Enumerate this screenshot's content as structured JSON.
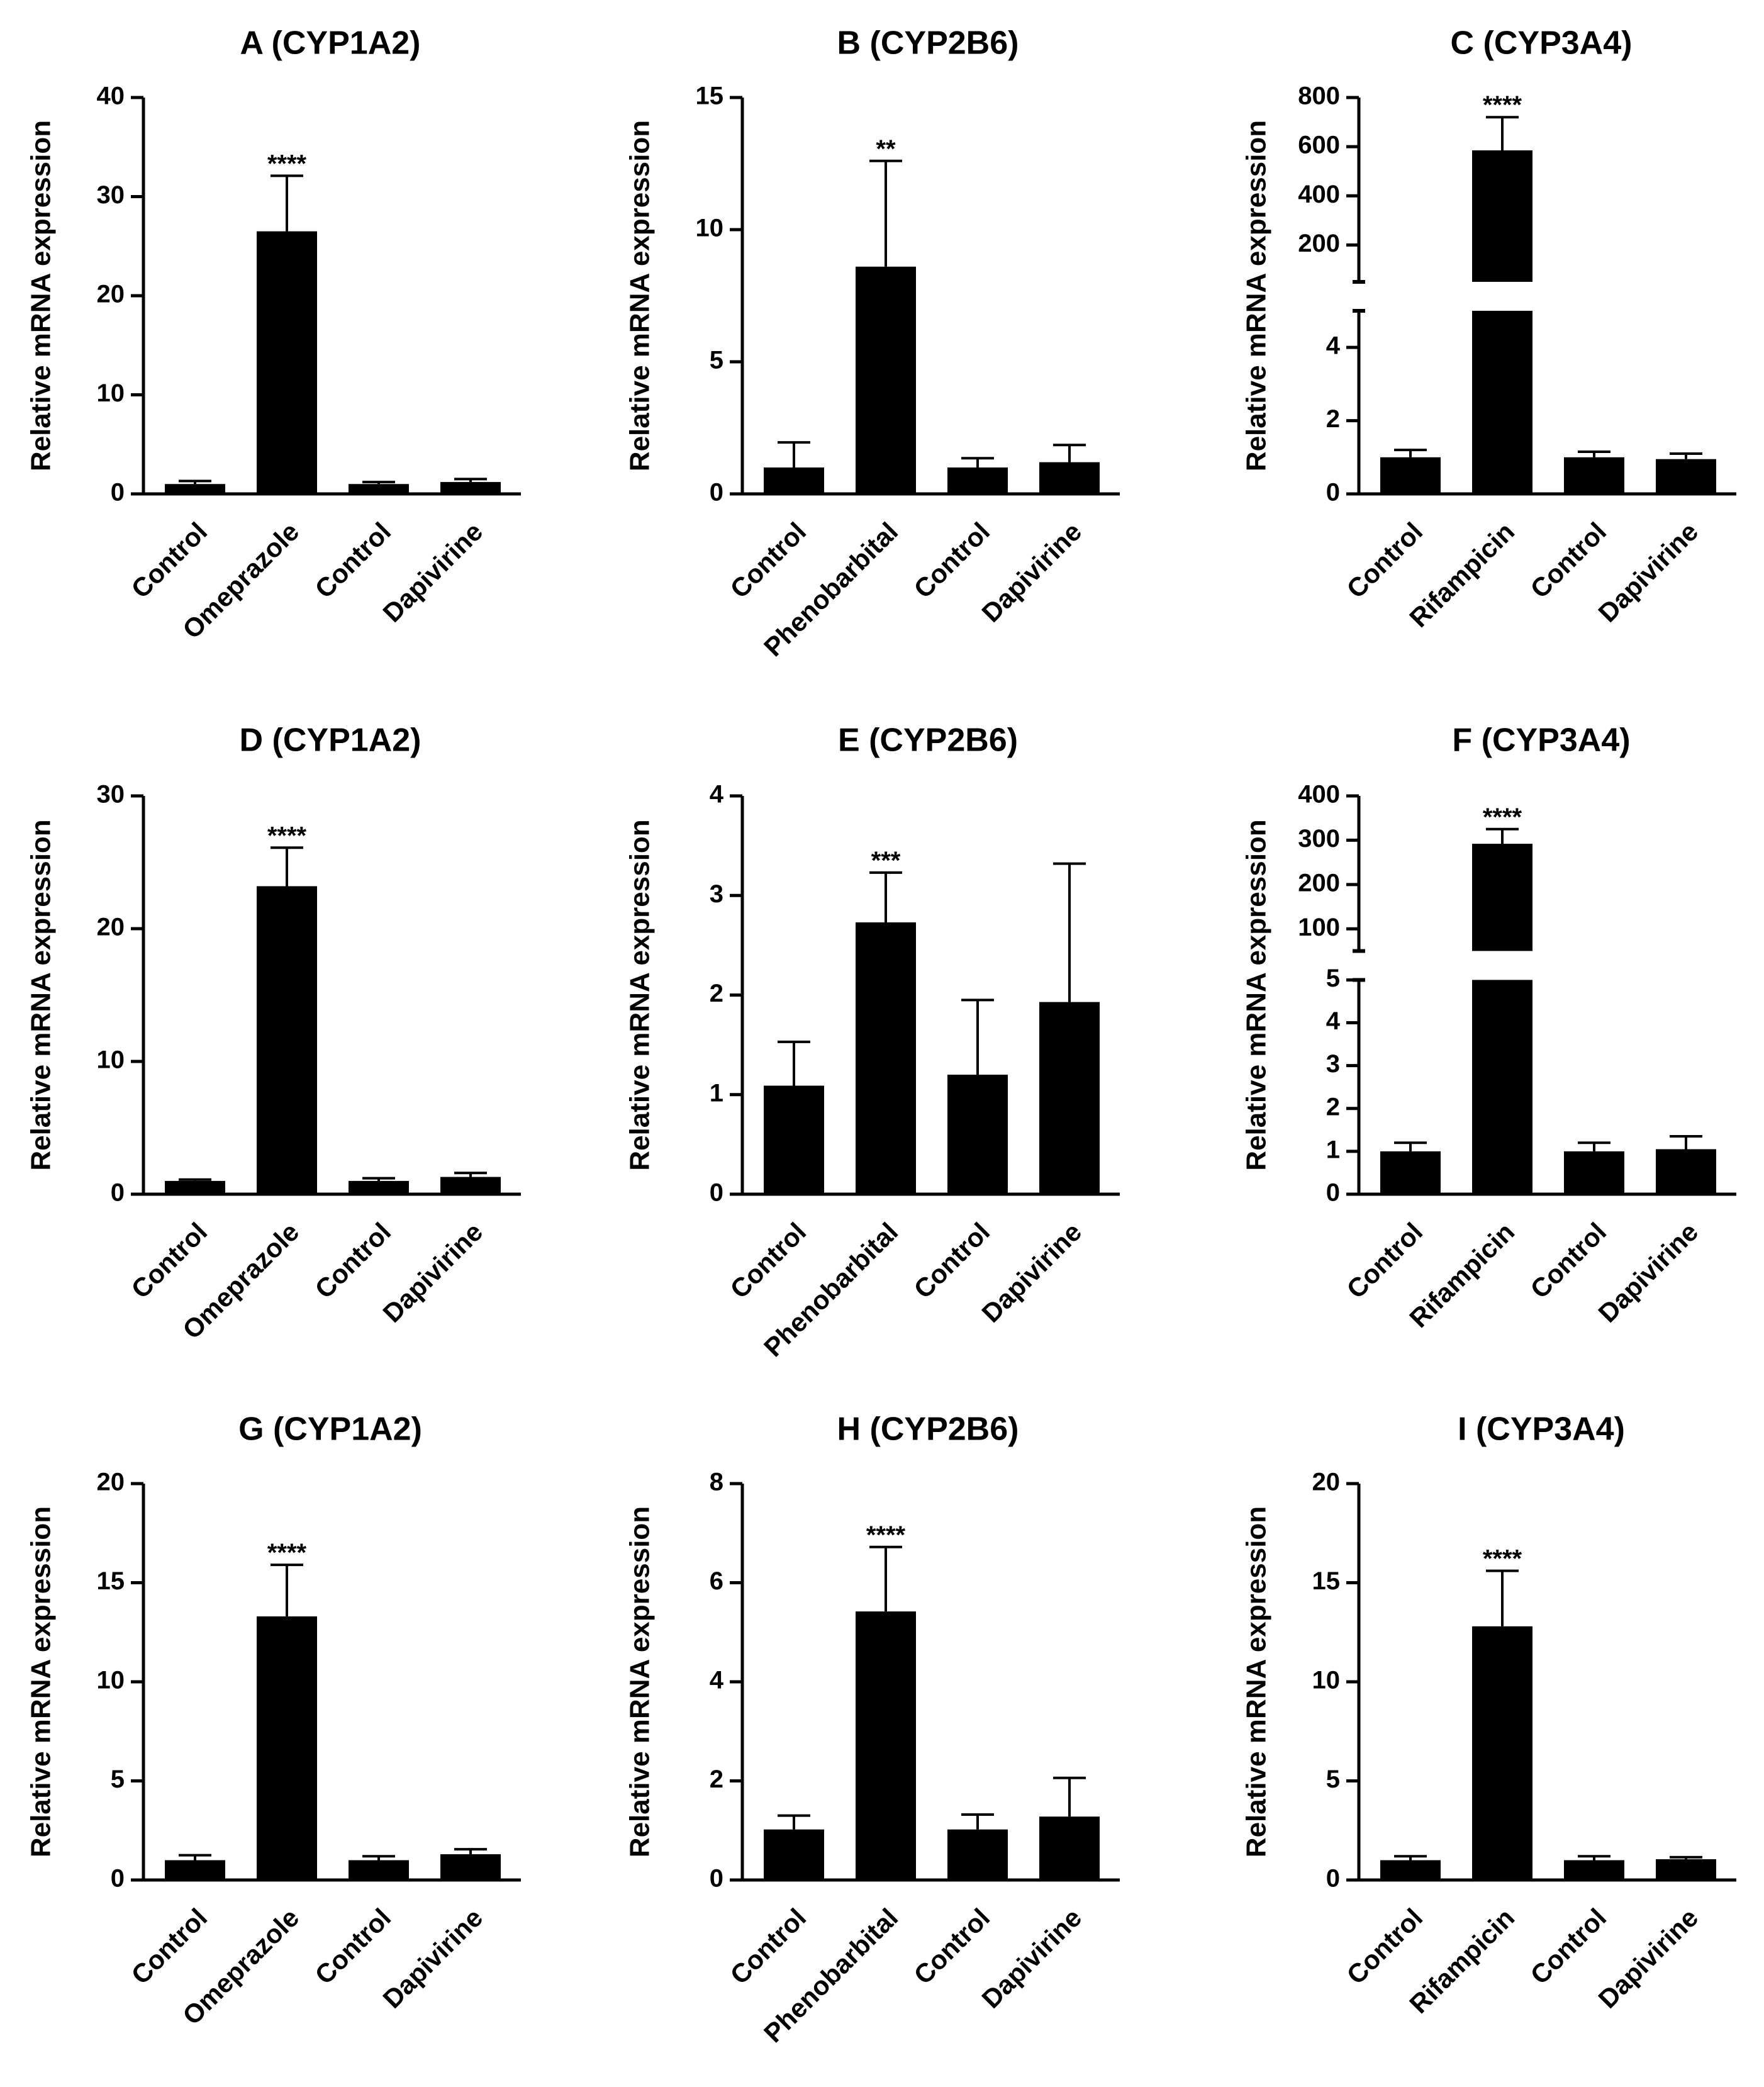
{
  "figure": {
    "background": "#ffffff",
    "bar_color": "#000000"
  },
  "chart_data": [
    {
      "panel": "A",
      "type": "bar",
      "title": "A (CYP1A2)",
      "xlabel": "",
      "ylabel": "Relative mRNA expression",
      "categories": [
        "Control",
        "Omeprazole",
        "Control",
        "Dapivirine"
      ],
      "values": [
        1.0,
        26.5,
        1.0,
        1.2
      ],
      "errors": [
        0.3,
        5.6,
        0.2,
        0.3
      ],
      "significance": [
        "",
        "****",
        "",
        ""
      ],
      "ylim": [
        0,
        40
      ],
      "yticks": [
        0,
        10,
        20,
        30,
        40
      ],
      "ytick_labels": [
        "0",
        "10",
        "20",
        "30",
        "40"
      ]
    },
    {
      "panel": "B",
      "type": "bar",
      "title": "B (CYP2B6)",
      "xlabel": "",
      "ylabel": "Relative mRNA expression",
      "categories": [
        "Control",
        "Phenobarbital",
        "Control",
        "Dapivirine"
      ],
      "values": [
        1.0,
        8.6,
        1.0,
        1.2
      ],
      "errors": [
        0.95,
        4.0,
        0.35,
        0.65
      ],
      "significance": [
        "",
        "**",
        "",
        ""
      ],
      "ylim": [
        0,
        15
      ],
      "yticks": [
        0,
        5,
        10,
        15
      ],
      "ytick_labels": [
        "0",
        "5",
        "10",
        "15"
      ]
    },
    {
      "panel": "C",
      "type": "bar",
      "title": "C (CYP3A4)",
      "xlabel": "",
      "ylabel": "Relative mRNA expression",
      "categories": [
        "Control",
        "Rifampicin",
        "Control",
        "Dapivirine"
      ],
      "values": [
        1.0,
        585,
        1.0,
        0.95
      ],
      "errors": [
        0.2,
        135,
        0.15,
        0.15
      ],
      "significance": [
        "",
        "****",
        "",
        ""
      ],
      "ylim": [
        0,
        800
      ],
      "broken_axis": {
        "lower": [
          0,
          5
        ],
        "upper": [
          50,
          800
        ],
        "lower_ticks": [
          0,
          2,
          4
        ],
        "upper_ticks": [
          200,
          400,
          600,
          800
        ]
      },
      "ytick_labels": [
        "0",
        "2",
        "4",
        "200",
        "400",
        "600",
        "800"
      ]
    },
    {
      "panel": "D",
      "type": "bar",
      "title": "D (CYP1A2)",
      "xlabel": "",
      "ylabel": "Relative mRNA expression",
      "categories": [
        "Control",
        "Omeprazole",
        "Control",
        "Dapivirine"
      ],
      "values": [
        1.0,
        23.2,
        1.0,
        1.3
      ],
      "errors": [
        0.1,
        2.9,
        0.2,
        0.3
      ],
      "significance": [
        "",
        "****",
        "",
        ""
      ],
      "ylim": [
        0,
        30
      ],
      "yticks": [
        0,
        10,
        20,
        30
      ],
      "ytick_labels": [
        "0",
        "10",
        "20",
        "30"
      ]
    },
    {
      "panel": "E",
      "type": "bar",
      "title": "E (CYP2B6)",
      "xlabel": "",
      "ylabel": "Relative mRNA expression",
      "categories": [
        "Control",
        "Phenobarbital",
        "Control",
        "Dapivirine"
      ],
      "values": [
        1.09,
        2.73,
        1.2,
        1.93
      ],
      "errors": [
        0.44,
        0.5,
        0.75,
        1.39
      ],
      "significance": [
        "",
        "***",
        "",
        ""
      ],
      "ylim": [
        0,
        4
      ],
      "yticks": [
        0,
        1,
        2,
        3,
        4
      ],
      "ytick_labels": [
        "0",
        "1",
        "2",
        "3",
        "4"
      ]
    },
    {
      "panel": "F",
      "type": "bar",
      "title": "F (CYP3A4)",
      "xlabel": "",
      "ylabel": "Relative mRNA expression",
      "categories": [
        "Control",
        "Rifampicin",
        "Control",
        "Dapivirine"
      ],
      "values": [
        1.0,
        292,
        1.0,
        1.05
      ],
      "errors": [
        0.2,
        33,
        0.2,
        0.3
      ],
      "significance": [
        "",
        "****",
        "",
        ""
      ],
      "ylim": [
        0,
        400
      ],
      "broken_axis": {
        "lower": [
          0,
          5
        ],
        "upper": [
          50,
          400
        ],
        "lower_ticks": [
          0,
          1,
          2,
          3,
          4,
          5
        ],
        "upper_ticks": [
          100,
          200,
          300,
          400
        ]
      },
      "ytick_labels": [
        "0",
        "1",
        "2",
        "3",
        "4",
        "5",
        "100",
        "200",
        "300",
        "400"
      ]
    },
    {
      "panel": "G",
      "type": "bar",
      "title": "G (CYP1A2)",
      "xlabel": "",
      "ylabel": "Relative mRNA expression",
      "categories": [
        "Control",
        "Omeprazole",
        "Control",
        "Dapivirine"
      ],
      "values": [
        1.0,
        13.3,
        1.0,
        1.3
      ],
      "errors": [
        0.25,
        2.6,
        0.2,
        0.25
      ],
      "significance": [
        "",
        "****",
        "",
        ""
      ],
      "ylim": [
        0,
        20
      ],
      "yticks": [
        0,
        5,
        10,
        15,
        20
      ],
      "ytick_labels": [
        "0",
        "5",
        "10",
        "15",
        "20"
      ]
    },
    {
      "panel": "H",
      "type": "bar",
      "title": "H (CYP2B6)",
      "xlabel": "",
      "ylabel": "Relative mRNA expression",
      "categories": [
        "Control",
        "Phenobarbital",
        "Control",
        "Dapivirine"
      ],
      "values": [
        1.02,
        5.42,
        1.02,
        1.28
      ],
      "errors": [
        0.28,
        1.3,
        0.3,
        0.78
      ],
      "significance": [
        "",
        "****",
        "",
        ""
      ],
      "ylim": [
        0,
        8
      ],
      "yticks": [
        0,
        2,
        4,
        6,
        8
      ],
      "ytick_labels": [
        "0",
        "2",
        "4",
        "6",
        "8"
      ]
    },
    {
      "panel": "I",
      "type": "bar",
      "title": "I (CYP3A4)",
      "xlabel": "",
      "ylabel": "Relative mRNA expression",
      "categories": [
        "Control",
        "Rifampicin",
        "Control",
        "Dapivirine"
      ],
      "values": [
        1.0,
        12.8,
        1.0,
        1.05
      ],
      "errors": [
        0.2,
        2.8,
        0.2,
        0.1
      ],
      "significance": [
        "",
        "****",
        "",
        ""
      ],
      "ylim": [
        0,
        20
      ],
      "yticks": [
        0,
        5,
        10,
        15,
        20
      ],
      "ytick_labels": [
        "0",
        "5",
        "10",
        "15",
        "20"
      ]
    }
  ]
}
